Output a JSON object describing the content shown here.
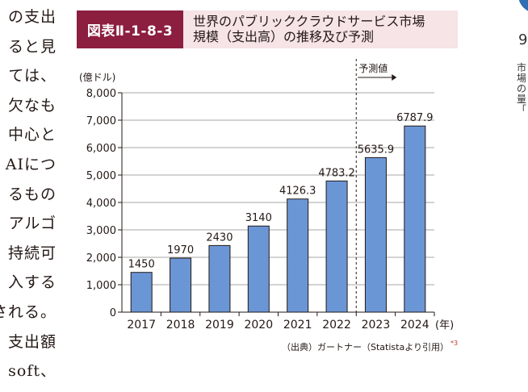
{
  "body_text": {
    "lines": [
      "の支出",
      "ると見",
      "ては、",
      "欠なも",
      "中心と",
      "AIにつ",
      "るもの",
      "アルゴ",
      "持続可",
      "入する",
      "される。",
      "支出額",
      "soft、"
    ]
  },
  "right_margin_text": [
    "9",
    "市",
    "場",
    "の",
    "量",
    "「"
  ],
  "figure": {
    "label": "図表Ⅱ-1-8-3",
    "title_line1": "世界のパブリッククラウドサービス市場",
    "title_line2": "規模（支出高）の推移及び予測"
  },
  "chart_data": {
    "type": "bar",
    "categories": [
      "2017",
      "2018",
      "2019",
      "2020",
      "2021",
      "2022",
      "2023",
      "2024"
    ],
    "values": [
      1450,
      1970,
      2430,
      3140,
      4126.3,
      4783.2,
      5635.9,
      6787.9
    ],
    "value_labels": [
      "1450",
      "1970",
      "2430",
      "3140",
      "4126.3",
      "4783.2",
      "5635.9",
      "6787.9"
    ],
    "ylabel": "(億ドル)",
    "xlabel_unit": "(年)",
    "ylim": [
      0,
      8000
    ],
    "yticks": [
      0,
      1000,
      2000,
      3000,
      4000,
      5000,
      6000,
      7000,
      8000
    ],
    "ytick_labels": [
      "0",
      "1,000",
      "2,000",
      "3,000",
      "4,000",
      "5,000",
      "6,000",
      "7,000",
      "8,000"
    ],
    "grid": true,
    "forecast_label": "予測値",
    "forecast_start_category": "2023",
    "bar_color": "#6b96d6",
    "source": "（出典）ガートナー（Statistaより引用）",
    "source_note": "*3"
  }
}
